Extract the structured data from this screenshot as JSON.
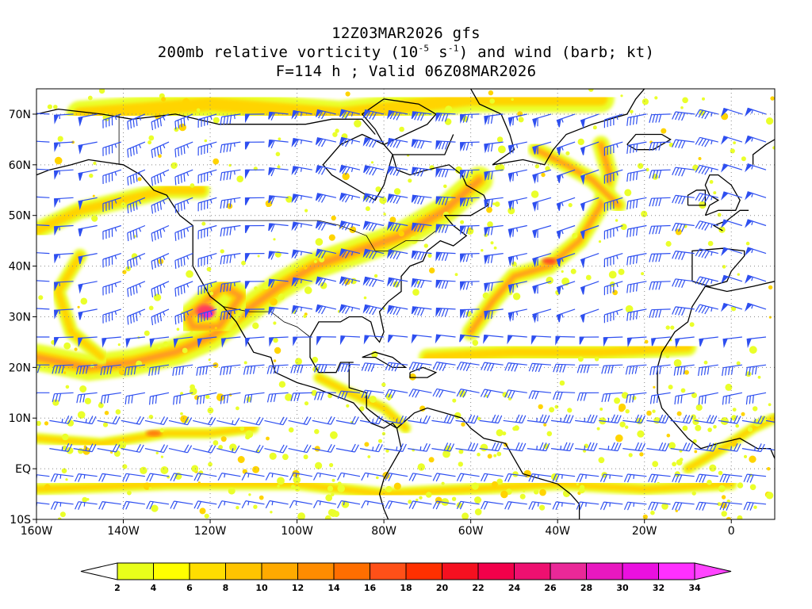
{
  "title": {
    "line1": "12Z03MAR2026 gfs",
    "line2_prefix": "200mb relative vorticity (10",
    "line2_exp1": "-5",
    "line2_mid": " s",
    "line2_exp2": "-1",
    "line2_suffix": ") and wind (barb; kt)",
    "line3": "F=114 h ; Valid 06Z08MAR2026"
  },
  "map": {
    "lon_range": [
      -160,
      10
    ],
    "lat_range": [
      -10,
      75
    ],
    "lat_ticks": [
      {
        "value": 70,
        "label": "70N"
      },
      {
        "value": 60,
        "label": "60N"
      },
      {
        "value": 50,
        "label": "50N"
      },
      {
        "value": 40,
        "label": "40N"
      },
      {
        "value": 30,
        "label": "30N"
      },
      {
        "value": 20,
        "label": "20N"
      },
      {
        "value": 10,
        "label": "10N"
      },
      {
        "value": 0,
        "label": "EQ"
      },
      {
        "value": -10,
        "label": "10S"
      }
    ],
    "lon_ticks": [
      {
        "value": -160,
        "label": "160W"
      },
      {
        "value": -140,
        "label": "140W"
      },
      {
        "value": -120,
        "label": "120W"
      },
      {
        "value": -100,
        "label": "100W"
      },
      {
        "value": -80,
        "label": "80W"
      },
      {
        "value": -60,
        "label": "60W"
      },
      {
        "value": -40,
        "label": "40W"
      },
      {
        "value": -20,
        "label": "20W"
      },
      {
        "value": 0,
        "label": "0"
      }
    ],
    "gridlines": "dotted",
    "barb_color": "#2e4ff0",
    "coast_color": "#000000"
  },
  "colorbar": {
    "levels": [
      "2",
      "4",
      "6",
      "8",
      "10",
      "12",
      "14",
      "16",
      "18",
      "20",
      "22",
      "24",
      "26",
      "28",
      "30",
      "32",
      "34"
    ],
    "colors": [
      "#ffffff",
      "#e8ff1a",
      "#ffff00",
      "#ffdd00",
      "#ffc400",
      "#ffaa00",
      "#ff8c00",
      "#ff6e00",
      "#ff5018",
      "#ff3000",
      "#f51020",
      "#f2004a",
      "#ee1070",
      "#ea2898",
      "#e818c0",
      "#ea10e0",
      "#ff30ff",
      "#ff44ff"
    ]
  },
  "vorticity_bands": [
    {
      "name": "pacific-jet",
      "pts": [
        [
          -160,
          22
        ],
        [
          -148,
          20
        ],
        [
          -138,
          21
        ],
        [
          -128,
          23
        ],
        [
          -120,
          26
        ],
        [
          -112,
          31
        ],
        [
          -104,
          36
        ],
        [
          -96,
          40
        ],
        [
          -86,
          43
        ],
        [
          -76,
          46
        ],
        [
          -66,
          51
        ],
        [
          -58,
          57
        ]
      ]
    },
    {
      "name": "alaska-band",
      "pts": [
        [
          -160,
          47
        ],
        [
          -150,
          51
        ],
        [
          -140,
          53
        ],
        [
          -130,
          55
        ],
        [
          -122,
          55
        ]
      ]
    },
    {
      "name": "atlantic-jet",
      "pts": [
        [
          -70,
          22
        ],
        [
          -50,
          23
        ],
        [
          -30,
          23
        ],
        [
          -10,
          24
        ]
      ]
    },
    {
      "name": "mid-atlantic-arc",
      "pts": [
        [
          -60,
          27
        ],
        [
          -55,
          33
        ],
        [
          -50,
          38
        ],
        [
          -42,
          40
        ],
        [
          -35,
          45
        ],
        [
          -30,
          52
        ],
        [
          -28,
          58
        ],
        [
          -30,
          64
        ]
      ]
    },
    {
      "name": "greenland-band",
      "pts": [
        [
          -45,
          63
        ],
        [
          -38,
          60
        ],
        [
          -32,
          57
        ],
        [
          -26,
          52
        ]
      ]
    },
    {
      "name": "cutoff-low",
      "pts": [
        [
          -125,
          30
        ],
        [
          -121,
          33
        ],
        [
          -117,
          36
        ],
        [
          -113,
          34
        ],
        [
          -118,
          28
        ],
        [
          -124,
          28
        ],
        [
          -125,
          30
        ]
      ]
    },
    {
      "name": "tropical-band",
      "pts": [
        [
          -160,
          6
        ],
        [
          -145,
          5
        ],
        [
          -130,
          7
        ],
        [
          -120,
          7
        ],
        [
          -110,
          8
        ]
      ]
    },
    {
      "name": "north-band",
      "pts": [
        [
          -150,
          70
        ],
        [
          -120,
          72
        ],
        [
          -90,
          70
        ],
        [
          -60,
          73
        ],
        [
          -30,
          73
        ]
      ]
    },
    {
      "name": "south-band",
      "pts": [
        [
          -160,
          -4
        ],
        [
          -130,
          -3
        ],
        [
          -100,
          -3
        ],
        [
          -80,
          -5
        ],
        [
          -60,
          -4
        ],
        [
          -40,
          -3
        ],
        [
          -20,
          -4
        ],
        [
          0,
          -3
        ]
      ]
    },
    {
      "name": "africa-band",
      "pts": [
        [
          -10,
          0
        ],
        [
          -2,
          4
        ],
        [
          5,
          8
        ],
        [
          10,
          10
        ]
      ]
    },
    {
      "name": "central-am-band",
      "pts": [
        [
          -95,
          18
        ],
        [
          -88,
          15
        ],
        [
          -80,
          12
        ],
        [
          -75,
          8
        ]
      ]
    },
    {
      "name": "east-pac-loop",
      "pts": [
        [
          -150,
          42
        ],
        [
          -155,
          35
        ],
        [
          -152,
          27
        ],
        [
          -145,
          22
        ]
      ]
    }
  ]
}
